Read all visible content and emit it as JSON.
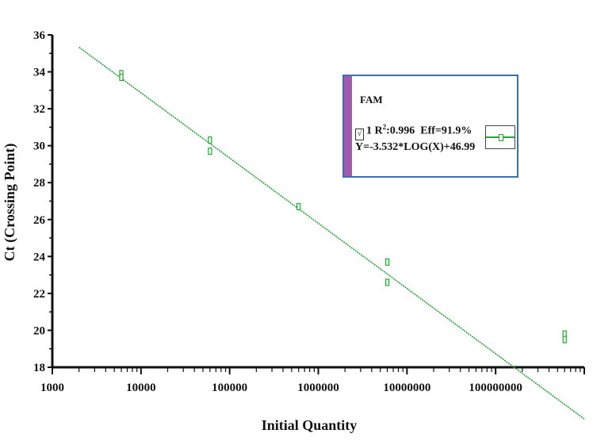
{
  "chart_data": {
    "type": "scatter",
    "xlabel": "Initial Quantity",
    "ylabel": "Ct (Crossing Point)",
    "xscale": "log",
    "xlim": [
      1000,
      1000000000
    ],
    "ylim": [
      18,
      36
    ],
    "x_ticks": [
      "1000",
      "10000",
      "100000",
      "1000000",
      "10000000",
      "100000000"
    ],
    "y_ticks": [
      "18",
      "20",
      "22",
      "24",
      "26",
      "28",
      "30",
      "32",
      "34",
      "36"
    ],
    "series": [
      {
        "name": "FAM",
        "color": "#2aa33a",
        "points": [
          {
            "x": 6000,
            "y": 33.9
          },
          {
            "x": 6000,
            "y": 33.7
          },
          {
            "x": 60000,
            "y": 30.3
          },
          {
            "x": 60000,
            "y": 29.7
          },
          {
            "x": 600000,
            "y": 26.7
          },
          {
            "x": 6000000,
            "y": 23.7
          },
          {
            "x": 6000000,
            "y": 22.6
          },
          {
            "x": 600000000,
            "y": 19.8
          },
          {
            "x": 600000000,
            "y": 19.5
          }
        ]
      }
    ],
    "fit": {
      "slope": -3.532,
      "intercept": 46.99,
      "x_range": [
        2000,
        1000000000
      ]
    }
  },
  "legend": {
    "title": "FAM",
    "check_mark": "√",
    "r2_prefix": "1 R",
    "r2_sup": "2",
    "r2_value": ":0.996",
    "eff": "Eff=91.9%",
    "equation": "Y=-3.532*LOG(X)+46.99"
  }
}
